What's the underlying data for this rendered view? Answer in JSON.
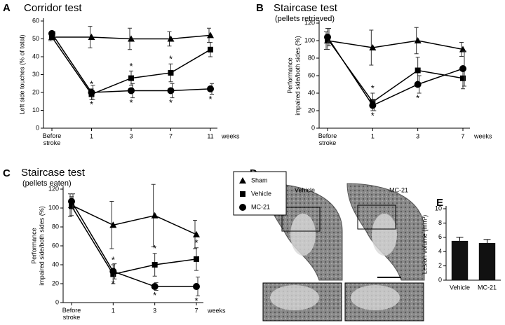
{
  "chart_data": [
    {
      "type": "line",
      "panel": "A",
      "title": "Corridor test",
      "ylabel": [
        "Left side touches (% of total)"
      ],
      "xlabel": "weeks",
      "categories": [
        "Before stroke",
        "1",
        "3",
        "7",
        "11"
      ],
      "ylim": [
        0,
        60
      ],
      "yticks": [
        0,
        10,
        20,
        30,
        40,
        50,
        60
      ],
      "sig_label": "*",
      "series": [
        {
          "name": "Sham",
          "marker": "triangle",
          "color": "#000000",
          "values": [
            51,
            51,
            50,
            50,
            52
          ],
          "errors": [
            2,
            6,
            6,
            4,
            4
          ],
          "significant": [
            false,
            false,
            false,
            false,
            false
          ]
        },
        {
          "name": "Vehicle",
          "marker": "square",
          "color": "#000000",
          "values": [
            51,
            19,
            28,
            31,
            44
          ],
          "errors": [
            1,
            3,
            4,
            5,
            4
          ],
          "significant": [
            false,
            true,
            true,
            true,
            false
          ]
        },
        {
          "name": "MC-21",
          "marker": "circle",
          "color": "#000000",
          "values": [
            53,
            20,
            21,
            21,
            22
          ],
          "errors": [
            1,
            4,
            4,
            4,
            3
          ],
          "significant": [
            false,
            true,
            true,
            true,
            true
          ]
        }
      ]
    },
    {
      "type": "line",
      "panel": "B",
      "title": "Staircase test",
      "subtitle": "(pellets retrieved)",
      "ylabel": [
        "Performance",
        "impaired side/both sides (%)"
      ],
      "xlabel": "weeks",
      "categories": [
        "Before stroke",
        "1",
        "3",
        "7"
      ],
      "ylim": [
        0,
        120
      ],
      "yticks": [
        0,
        20,
        40,
        60,
        80,
        100,
        120
      ],
      "sig_label": "*",
      "series": [
        {
          "name": "Sham",
          "marker": "triangle",
          "color": "#000000",
          "values": [
            100,
            92,
            100,
            90
          ],
          "errors": [
            10,
            20,
            15,
            8
          ],
          "significant": [
            false,
            false,
            false,
            false
          ]
        },
        {
          "name": "Vehicle",
          "marker": "square",
          "color": "#000000",
          "values": [
            102,
            30,
            66,
            57
          ],
          "errors": [
            12,
            10,
            15,
            12
          ],
          "significant": [
            false,
            true,
            false,
            false
          ]
        },
        {
          "name": "MC-21",
          "marker": "circle",
          "color": "#000000",
          "values": [
            104,
            26,
            50,
            68
          ],
          "errors": [
            10,
            6,
            10,
            20
          ],
          "significant": [
            false,
            true,
            true,
            false
          ]
        }
      ]
    },
    {
      "type": "line",
      "panel": "C",
      "title": "Staircase test",
      "subtitle": "(pellets eaten)",
      "ylabel": [
        "Performance",
        "impaired side/both sides (%)"
      ],
      "xlabel": "weeks",
      "legend": true,
      "categories": [
        "Before stroke",
        "1",
        "3",
        "7"
      ],
      "ylim": [
        0,
        120
      ],
      "yticks": [
        0,
        20,
        40,
        60,
        80,
        100,
        120
      ],
      "sig_label": "*",
      "series": [
        {
          "name": "Sham",
          "marker": "triangle",
          "color": "#000000",
          "values": [
            103,
            82,
            92,
            72
          ],
          "errors": [
            12,
            25,
            33,
            15
          ],
          "significant": [
            false,
            false,
            false,
            false
          ]
        },
        {
          "name": "Vehicle",
          "marker": "square",
          "color": "#000000",
          "values": [
            102,
            30,
            40,
            46
          ],
          "errors": [
            10,
            10,
            12,
            12
          ],
          "significant": [
            false,
            true,
            true,
            true
          ]
        },
        {
          "name": "MC-21",
          "marker": "circle",
          "color": "#000000",
          "values": [
            107,
            33,
            17,
            17
          ],
          "errors": [
            8,
            8,
            4,
            10
          ],
          "significant": [
            false,
            true,
            true,
            true
          ]
        }
      ]
    },
    {
      "type": "bar",
      "panel": "E",
      "ylabel": [
        "Lesion volume (mm³)"
      ],
      "categories": [
        "Vehicle",
        "MC-21"
      ],
      "values": [
        5.5,
        5.2
      ],
      "errors": [
        0.5,
        0.5
      ],
      "color": "#111111",
      "ylim": [
        0,
        10
      ],
      "yticks": [
        0,
        2,
        4,
        6,
        8,
        10
      ]
    }
  ],
  "image_panel": {
    "panel": "D",
    "labels": [
      "Vehicle",
      "MC-21"
    ]
  }
}
